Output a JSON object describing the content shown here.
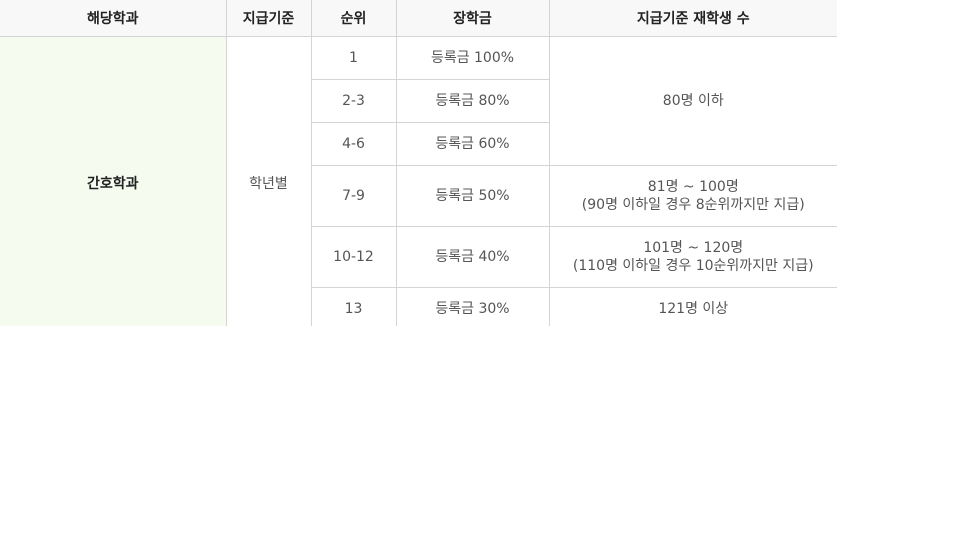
{
  "table": {
    "headers": [
      "해당학과",
      "지급기준",
      "순위",
      "장학금",
      "지급기준 재학생 수"
    ],
    "department": "간호학과",
    "criterion": "학년별",
    "rows": [
      {
        "rank": "1",
        "scholarship": "등록금 100%"
      },
      {
        "rank": "2-3",
        "scholarship": "등록금 80%"
      },
      {
        "rank": "4-6",
        "scholarship": "등록금 60%"
      },
      {
        "rank": "7-9",
        "scholarship": "등록금 50%"
      },
      {
        "rank": "10-12",
        "scholarship": "등록금 40%"
      },
      {
        "rank": "13",
        "scholarship": "등록금 30%"
      }
    ],
    "counts": [
      {
        "line1": "80명 이하",
        "line2": ""
      },
      {
        "line1": "81명 ~ 100명",
        "line2": "(90명 이하일 경우 8순위까지만 지급)"
      },
      {
        "line1": "101명 ~ 120명",
        "line2": "(110명 이하일 경우 10순위까지만 지급)"
      },
      {
        "line1": "121명 이상",
        "line2": ""
      }
    ]
  }
}
